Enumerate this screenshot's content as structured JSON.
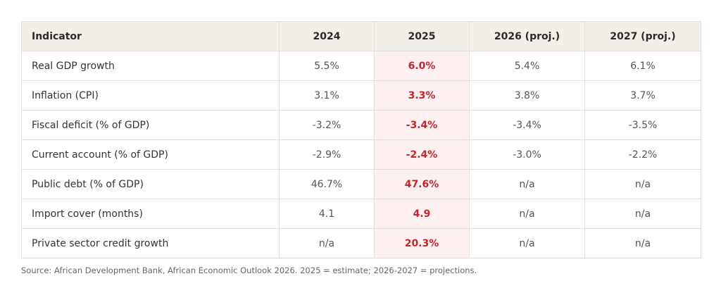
{
  "table": {
    "headers": [
      "Indicator",
      "2024",
      "2025",
      "2026 (proj.)",
      "2027 (proj.)"
    ],
    "highlight_column": 2,
    "highlight_color": "#c0262c",
    "rows": [
      [
        "Real GDP growth",
        "5.5%",
        "6.0%",
        "5.4%",
        "6.1%"
      ],
      [
        "Inflation (CPI)",
        "3.1%",
        "3.3%",
        "3.8%",
        "3.7%"
      ],
      [
        "Fiscal deficit (% of GDP)",
        "-3.2%",
        "-3.4%",
        "-3.4%",
        "-3.5%"
      ],
      [
        "Current account (% of GDP)",
        "-2.9%",
        "-2.4%",
        "-3.0%",
        "-2.2%"
      ],
      [
        "Public debt (% of GDP)",
        "46.7%",
        "47.6%",
        "n/a",
        "n/a"
      ],
      [
        "Import cover (months)",
        "4.1",
        "4.9",
        "n/a",
        "n/a"
      ],
      [
        "Private sector credit growth",
        "n/a",
        "20.3%",
        "n/a",
        "n/a"
      ]
    ]
  },
  "source_note": "Source: African Development Bank, African Economic Outlook 2026. 2025 = estimate; 2026-2027 = projections."
}
